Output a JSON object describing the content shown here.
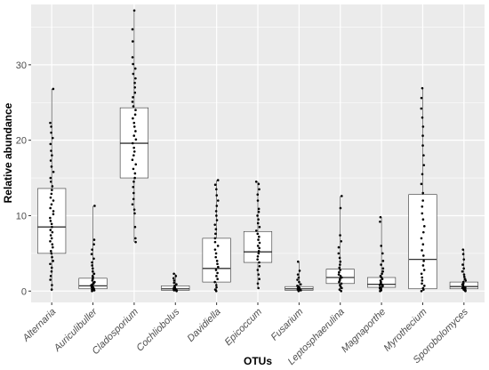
{
  "chart_data": {
    "type": "boxplot",
    "title": "",
    "xlabel": "OTUs",
    "ylabel": "Relative abundance",
    "ylim": [
      -1.5,
      38
    ],
    "yticks": [
      0,
      10,
      20,
      30
    ],
    "grid": true,
    "panel_color": "#ebebeb",
    "box_fill": "#ffffff",
    "point_color": "#000000",
    "categories": [
      "Alternaria",
      "Auriculibuller",
      "Cladosporium",
      "Cochliobolus",
      "Davidiella",
      "Epicoccum",
      "Fusarium",
      "Leptosphaerulina",
      "Magnaporthe",
      "Myrothecium",
      "Sporobolomyces"
    ],
    "boxes": [
      {
        "min": 0.1,
        "q1": 5.0,
        "median": 8.5,
        "q3": 13.6,
        "max": 26.8
      },
      {
        "min": 0.0,
        "q1": 0.3,
        "median": 0.7,
        "q3": 1.7,
        "max": 11.3
      },
      {
        "min": 6.5,
        "q1": 15.0,
        "median": 19.6,
        "q3": 24.3,
        "max": 37.2
      },
      {
        "min": 0.0,
        "q1": 0.1,
        "median": 0.3,
        "q3": 0.7,
        "max": 2.3
      },
      {
        "min": 0.0,
        "q1": 1.2,
        "median": 3.0,
        "q3": 7.0,
        "max": 14.7
      },
      {
        "min": 0.4,
        "q1": 3.8,
        "median": 5.2,
        "q3": 7.9,
        "max": 14.5
      },
      {
        "min": 0.0,
        "q1": 0.1,
        "median": 0.3,
        "q3": 0.6,
        "max": 3.9
      },
      {
        "min": 0.0,
        "q1": 1.0,
        "median": 1.8,
        "q3": 2.9,
        "max": 12.6
      },
      {
        "min": 0.0,
        "q1": 0.5,
        "median": 0.9,
        "q3": 1.8,
        "max": 9.8
      },
      {
        "min": 0.0,
        "q1": 0.3,
        "median": 4.2,
        "q3": 12.8,
        "max": 26.9
      },
      {
        "min": 0.0,
        "q1": 0.3,
        "median": 0.6,
        "q3": 1.2,
        "max": 5.5
      }
    ],
    "points": [
      [
        0.2,
        0.8,
        1.5,
        2.0,
        2.6,
        3.1,
        3.6,
        4.0,
        4.5,
        5.0,
        5.3,
        5.8,
        6.2,
        6.6,
        7.0,
        7.4,
        7.8,
        8.1,
        8.5,
        8.9,
        9.3,
        9.7,
        10.2,
        10.6,
        11.0,
        11.5,
        12.0,
        12.4,
        12.9,
        13.4,
        13.9,
        14.5,
        15.0,
        15.8,
        16.5,
        17.3,
        18.0,
        18.6,
        19.5,
        20.3,
        21.0,
        21.8,
        22.3,
        26.8
      ],
      [
        0.0,
        0.1,
        0.1,
        0.2,
        0.2,
        0.3,
        0.3,
        0.4,
        0.5,
        0.5,
        0.6,
        0.7,
        0.8,
        0.9,
        1.0,
        1.1,
        1.2,
        1.4,
        1.6,
        1.8,
        2.0,
        2.3,
        2.6,
        3.0,
        3.4,
        3.8,
        4.3,
        4.9,
        5.5,
        6.2,
        6.8,
        11.3
      ],
      [
        6.5,
        7.0,
        8.5,
        10.3,
        10.8,
        11.5,
        12.2,
        13.0,
        13.8,
        14.5,
        15.0,
        15.6,
        16.2,
        16.8,
        17.4,
        18.0,
        18.5,
        19.0,
        19.6,
        20.1,
        20.6,
        21.2,
        21.8,
        22.3,
        22.9,
        23.4,
        24.0,
        24.5,
        25.1,
        25.7,
        26.3,
        27.0,
        27.6,
        28.2,
        28.8,
        29.5,
        30.1,
        31.0,
        33.1,
        34.7,
        37.2
      ],
      [
        0.0,
        0.1,
        0.1,
        0.2,
        0.2,
        0.3,
        0.3,
        0.4,
        0.5,
        0.6,
        0.7,
        0.9,
        1.1,
        1.4,
        1.7,
        2.0,
        2.3
      ],
      [
        0.0,
        0.2,
        0.5,
        0.8,
        1.2,
        1.6,
        2.0,
        2.4,
        2.8,
        3.2,
        3.6,
        4.0,
        4.5,
        5.0,
        5.5,
        6.0,
        6.5,
        7.0,
        7.6,
        8.2,
        8.8,
        9.4,
        10.0,
        10.6,
        11.3,
        12.0,
        12.7,
        13.5,
        14.1,
        14.7
      ],
      [
        0.4,
        1.0,
        1.6,
        2.2,
        2.8,
        3.3,
        3.8,
        4.2,
        4.6,
        5.0,
        5.3,
        5.7,
        6.0,
        6.4,
        6.8,
        7.2,
        7.6,
        8.0,
        8.5,
        9.0,
        9.5,
        10.0,
        10.5,
        10.9,
        12.0,
        12.8,
        13.5,
        14.2,
        14.5
      ],
      [
        0.0,
        0.1,
        0.1,
        0.2,
        0.2,
        0.3,
        0.3,
        0.4,
        0.5,
        0.6,
        0.7,
        0.9,
        1.2,
        1.5,
        1.8,
        2.2,
        2.7,
        3.9
      ],
      [
        0.0,
        0.2,
        0.4,
        0.6,
        0.8,
        1.0,
        1.2,
        1.4,
        1.6,
        1.8,
        2.0,
        2.2,
        2.5,
        2.8,
        3.1,
        3.5,
        3.9,
        4.4,
        5.0,
        5.8,
        6.6,
        7.4,
        11.0,
        12.6
      ],
      [
        0.0,
        0.1,
        0.2,
        0.3,
        0.4,
        0.5,
        0.6,
        0.7,
        0.8,
        0.9,
        1.0,
        1.2,
        1.4,
        1.6,
        1.8,
        2.0,
        2.3,
        2.6,
        3.0,
        3.5,
        4.0,
        5.0,
        6.0,
        9.2,
        9.8
      ],
      [
        0.0,
        0.2,
        0.4,
        0.7,
        1.0,
        1.4,
        1.8,
        2.3,
        2.8,
        3.4,
        4.0,
        4.7,
        5.4,
        6.2,
        7.0,
        7.8,
        8.6,
        9.5,
        10.3,
        11.2,
        12.0,
        13.0,
        14.2,
        15.5,
        16.7,
        18.0,
        19.3,
        20.6,
        21.8,
        23.0,
        24.2,
        25.6,
        26.9
      ],
      [
        0.0,
        0.1,
        0.1,
        0.2,
        0.3,
        0.3,
        0.4,
        0.5,
        0.6,
        0.7,
        0.8,
        0.9,
        1.0,
        1.2,
        1.4,
        1.6,
        1.9,
        2.2,
        2.6,
        3.0,
        3.5,
        4.2,
        4.9,
        5.5
      ]
    ]
  }
}
